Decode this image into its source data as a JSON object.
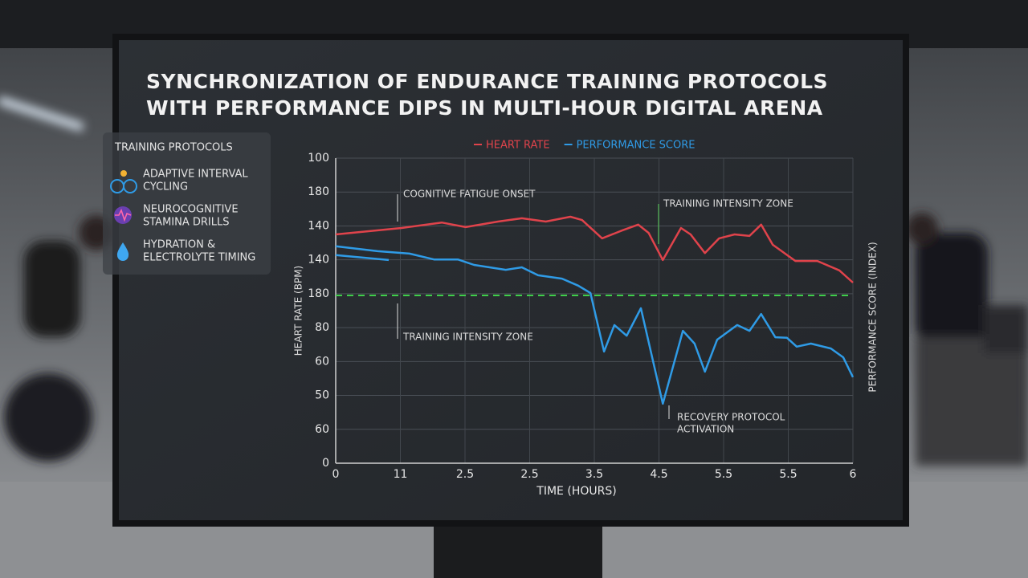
{
  "chart_data": {
    "type": "line",
    "title": [
      "SYNCHRONIZATION OF ENDURANCE TRAINING PROTOCOLS",
      "WITH PERFORMANCE DIPS IN MULTI-HOUR DIGITAL ARENA"
    ],
    "y_axis_label": "HEART RATE (BPM)",
    "y2_axis_label": "PERFORMANCE SCORE (INDEX)",
    "x_axis_label": "TIME (HOURS)",
    "xlim": [
      0,
      8
    ],
    "ylim": [
      0,
      100
    ],
    "x_labels": [
      "0",
      "11",
      "2.5",
      "2.5",
      "3.5",
      "4.5",
      "5.5",
      "5.5",
      "6"
    ],
    "y_labels": [
      "100",
      "180",
      "140",
      "140",
      "180",
      "80",
      "60",
      "50",
      "60",
      "0"
    ],
    "grid": true,
    "series": [
      {
        "name": "HEART RATE",
        "color": "#e0434b",
        "x": [
          0,
          1.02,
          1.64,
          2.01,
          2.51,
          2.88,
          3.25,
          3.63,
          3.81,
          4.12,
          4.43,
          4.68,
          4.84,
          5.06,
          5.34,
          5.49,
          5.71,
          5.93,
          6.17,
          6.4,
          6.58,
          6.76,
          7.11,
          7.45,
          7.79,
          8
        ],
        "values": [
          75.0,
          77.1,
          78.9,
          77.4,
          79.2,
          80.3,
          79.2,
          80.8,
          79.7,
          73.7,
          76.3,
          78.2,
          75.5,
          66.6,
          77.1,
          75.0,
          68.9,
          73.7,
          75.0,
          74.5,
          78.2,
          71.6,
          66.3,
          66.3,
          63.2,
          59.2
        ]
      },
      {
        "name": "PERFORMANCE SCORE",
        "color": "#2f9be6",
        "x": [
          0,
          0.65,
          1.14,
          1.52,
          1.89,
          2.14,
          2.63,
          2.88,
          3.13,
          3.5,
          3.75,
          3.94,
          4.15,
          4.31,
          4.5,
          4.72,
          5.06,
          5.37,
          5.55,
          5.71,
          5.9,
          6.21,
          6.4,
          6.58,
          6.8,
          6.98,
          7.13,
          7.35,
          7.66,
          7.85,
          8
        ],
        "values": [
          71.1,
          69.5,
          68.7,
          66.8,
          66.8,
          65.0,
          63.4,
          64.2,
          61.6,
          60.5,
          58.2,
          55.8,
          36.6,
          45.3,
          41.8,
          50.8,
          19.5,
          43.4,
          39.2,
          30.0,
          40.5,
          45.3,
          43.4,
          48.9,
          41.3,
          41.1,
          38.2,
          39.2,
          37.6,
          34.7,
          28.2
        ]
      },
      {
        "color": "#2f9be6",
        "x": [
          0,
          0.82
        ],
        "values": [
          68.2,
          66.6
        ]
      }
    ],
    "threshold": {
      "value": 55,
      "color": "#3fce4a"
    },
    "annotations": [
      {
        "lines": [
          "COGNITIVE FATIGUE ONSET"
        ]
      },
      {
        "lines": [
          "TRAINING INTENSITY ZONE"
        ],
        "color": "#5ad25a"
      },
      {
        "lines": [
          "TRAINING INTENSITY ZONE"
        ]
      },
      {
        "lines": [
          "RECOVERY PROTOCOL",
          "ACTIVATION"
        ]
      }
    ]
  },
  "sidebar": {
    "title": "TRAINING PROTOCOLS",
    "items": [
      {
        "lines": [
          "ADAPTIVE INTERVAL",
          "CYCLING"
        ]
      },
      {
        "lines": [
          "NEUROCOGNITIVE",
          "STAMINA DRILLS"
        ]
      },
      {
        "lines": [
          "HYDRATION &",
          "ELECTROLYTE TIMING"
        ]
      }
    ]
  }
}
